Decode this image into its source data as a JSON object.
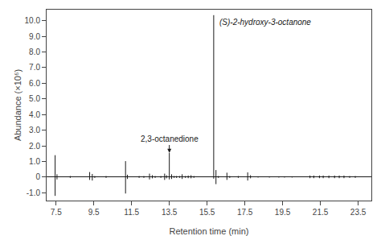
{
  "chart_data": {
    "type": "spike",
    "xlabel": "Retention time (min)",
    "ylabel": "Abundance (×10⁶)",
    "xlim": [
      7.0,
      24.2
    ],
    "ylim": [
      -1.5,
      10.7
    ],
    "xticks": [
      7.5,
      9.5,
      11.5,
      13.5,
      15.5,
      17.5,
      19.5,
      21.5,
      23.5
    ],
    "yticks": [
      {
        "value": -1.0,
        "label": "-1.0"
      },
      0,
      {
        "value": 1.0,
        "label": "1.0"
      },
      {
        "value": 2.0,
        "label": "2.0"
      },
      {
        "value": 3.0,
        "label": "3.0"
      },
      {
        "value": 4.0,
        "label": "4.0"
      },
      {
        "value": 5.0,
        "label": "5.0"
      },
      {
        "value": 6.0,
        "label": "6.0"
      },
      {
        "value": 7.0,
        "label": "7.0"
      },
      {
        "value": 8.0,
        "label": "8.0"
      },
      {
        "value": 9.0,
        "label": "9.0"
      },
      {
        "value": 10.0,
        "label": "10.0"
      }
    ],
    "grid": false,
    "color": "#1a1a1a",
    "x": [
      7.45,
      7.55,
      8.25,
      9.28,
      9.42,
      9.55,
      10.15,
      11.18,
      11.28,
      11.9,
      12.15,
      12.45,
      12.6,
      12.75,
      13.05,
      13.25,
      13.35,
      13.5,
      13.62,
      13.75,
      13.88,
      14.05,
      14.18,
      14.35,
      14.5,
      14.65,
      14.8,
      15.85,
      15.97,
      16.1,
      16.55,
      16.7,
      17.15,
      17.65,
      17.8,
      18.2,
      18.8,
      19.3,
      19.6,
      20.0,
      20.95,
      21.15,
      21.45,
      21.65,
      21.95,
      22.25,
      22.5,
      22.75,
      23.05,
      23.35
    ],
    "series": [
      {
        "values": [
          1.4,
          0.18,
          0.07,
          0.32,
          0.2,
          0.07,
          0.07,
          1.02,
          0.15,
          0.07,
          0.07,
          0.22,
          0.12,
          0.07,
          0.07,
          0.22,
          0.12,
          1.55,
          0.18,
          0.07,
          0.07,
          0.07,
          0.18,
          0.07,
          0.1,
          0.12,
          0.07,
          10.35,
          0.45,
          0.07,
          0.28,
          0.07,
          0.07,
          0.3,
          0.12,
          0.05,
          0.05,
          0.05,
          0.05,
          0.05,
          0.1,
          0.1,
          0.1,
          0.1,
          0.1,
          0.1,
          0.1,
          0.1,
          0.07,
          0.07
        ]
      },
      {
        "values": [
          -1.2,
          -0.15,
          -0.05,
          -0.18,
          -0.22,
          -0.05,
          -0.05,
          -1.05,
          -0.12,
          -0.05,
          -0.05,
          -0.15,
          -0.08,
          -0.05,
          -0.05,
          -0.18,
          -0.08,
          -0.15,
          -0.12,
          -0.05,
          -0.05,
          -0.05,
          -0.12,
          -0.05,
          -0.07,
          -0.08,
          -0.05,
          -0.1,
          -0.45,
          -0.05,
          -0.18,
          -0.05,
          -0.05,
          -0.22,
          -0.08,
          -0.03,
          -0.03,
          -0.03,
          -0.03,
          -0.03,
          -0.07,
          -0.07,
          -0.07,
          -0.07,
          -0.07,
          -0.07,
          -0.07,
          -0.07,
          -0.05,
          -0.05
        ]
      }
    ],
    "annotations": [
      {
        "text": "(S)-2-hydroxy-3-octanone",
        "x": 16.05,
        "y": 10.3
      },
      {
        "text": "2,3-octanedione",
        "x": 13.5,
        "y": 2.05,
        "arrow_y": 1.55
      }
    ]
  }
}
